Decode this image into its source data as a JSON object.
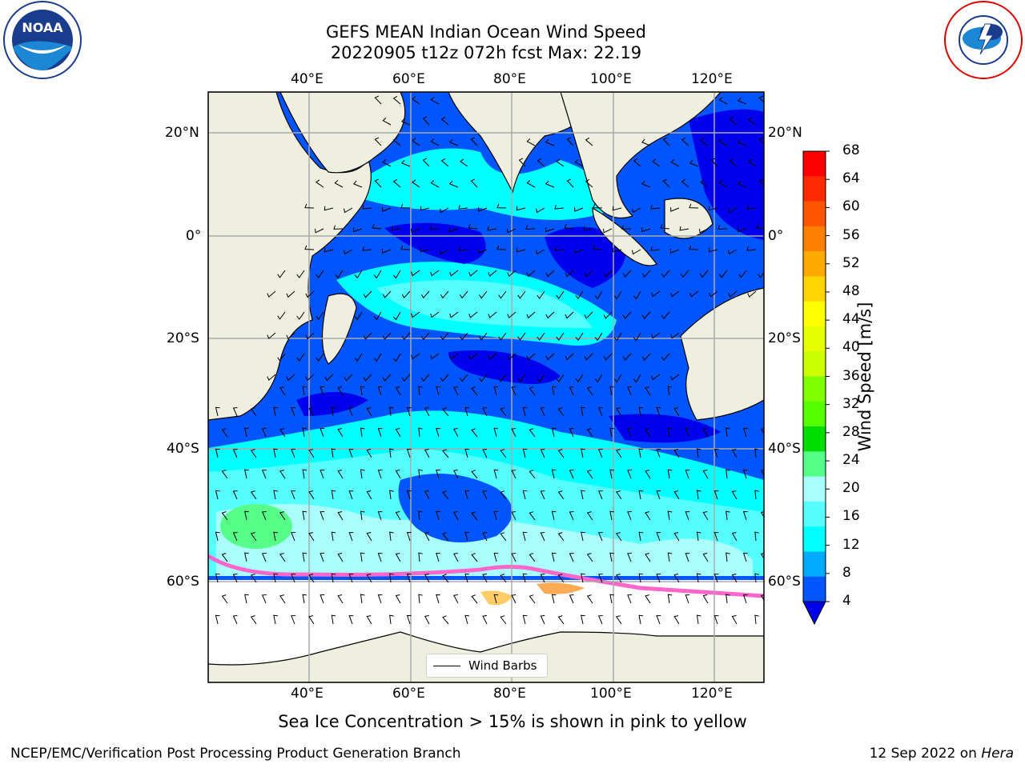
{
  "title": {
    "line1": "GEFS MEAN Indian Ocean Wind Speed",
    "line2": "20220905 t12z 072h fcst   Max: 22.19"
  },
  "axes": {
    "top_lon": [
      "40°E",
      "60°E",
      "80°E",
      "100°E",
      "120°E"
    ],
    "bottom_lon": [
      "40°E",
      "60°E",
      "80°E",
      "100°E",
      "120°E"
    ],
    "left_lat": [
      "20°N",
      "0°",
      "20°S",
      "40°S",
      "60°S"
    ],
    "right_lat": [
      "20°N",
      "0°",
      "20°S",
      "40°S",
      "60°S"
    ]
  },
  "colorbar": {
    "title": "Wind Speed [m/s]",
    "ticks": [
      "68",
      "64",
      "60",
      "56",
      "52",
      "48",
      "44",
      "40",
      "36",
      "32",
      "28",
      "24",
      "20",
      "16",
      "12",
      "8",
      "4"
    ],
    "bins": [
      "#ff0000",
      "#ff2a00",
      "#ff5500",
      "#ff7f00",
      "#ffaa00",
      "#ffd400",
      "#ffff00",
      "#e5ff00",
      "#ccff00",
      "#7fff00",
      "#55ff00",
      "#00dd00",
      "#55ff88",
      "#aaffff",
      "#55ffff",
      "#00ffff",
      "#00aaff",
      "#0055ff"
    ],
    "under_color": "#0000ee"
  },
  "legend": {
    "label": "Wind Barbs"
  },
  "footer": {
    "note": "Sea Ice Concentration > 15% is shown in pink to yellow",
    "org": "NCEP/EMC/Verification Post Processing Product Generation Branch",
    "date": "12 Sep 2022 on ",
    "host": "Hera"
  },
  "logos": {
    "left": "noaa-logo",
    "right": "nws-logo"
  }
}
